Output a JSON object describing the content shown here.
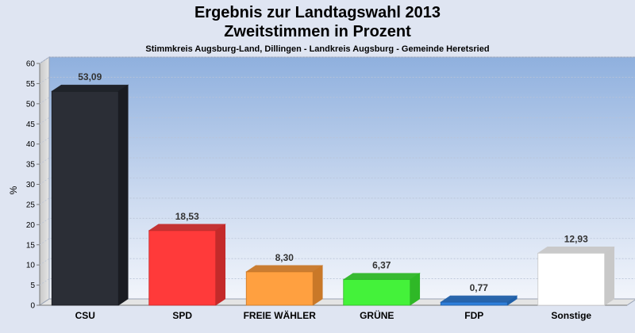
{
  "titles": {
    "title_line1": "Ergebnis zur Landtagswahl 2013",
    "title_line2": "Zweitstimmen in Prozent",
    "subtitle": "Stimmkreis Augsburg-Land, Dillingen - Landkreis Augsburg - Gemeinde Heretsried"
  },
  "chart_data": {
    "type": "bar",
    "title": "Ergebnis zur Landtagswahl 2013 Zweitstimmen in Prozent",
    "subtitle": "Stimmkreis Augsburg-Land, Dillingen - Landkreis Augsburg - Gemeinde Heretsried",
    "xlabel": "",
    "ylabel": "%",
    "ylim": [
      0,
      60
    ],
    "yticks": [
      0,
      5,
      10,
      15,
      20,
      25,
      30,
      35,
      40,
      45,
      50,
      55,
      60
    ],
    "grid": true,
    "categories": [
      "CSU",
      "SPD",
      "FREIE WÄHLER",
      "GRÜNE",
      "FDP",
      "Sonstige"
    ],
    "values": [
      53.09,
      18.53,
      8.3,
      6.37,
      0.77,
      12.93
    ],
    "value_labels": [
      "53,09",
      "18,53",
      "8,30",
      "6,37",
      "0,77",
      "12,93"
    ],
    "colors": [
      "#2b2e36",
      "#ff3a3a",
      "#ffa040",
      "#44f23a",
      "#2f7fdb",
      "#ffffff"
    ],
    "side_colors": [
      "#1a1c22",
      "#c42a2a",
      "#c97828",
      "#2fb827",
      "#1f5fa8",
      "#c8c8c8"
    ]
  }
}
